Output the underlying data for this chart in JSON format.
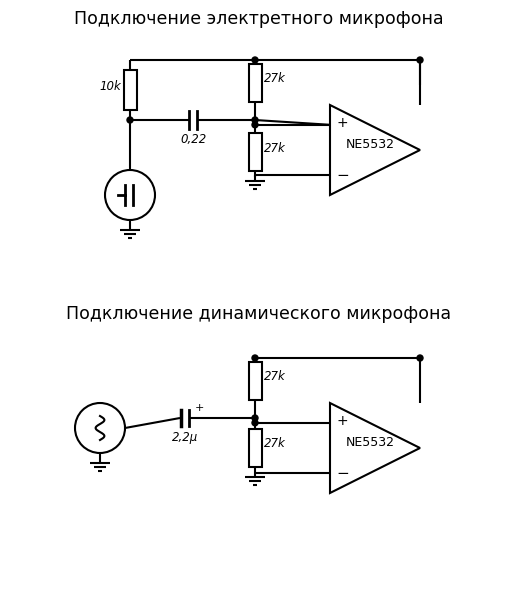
{
  "title1": "Подключение электретного микрофона",
  "title2": "Подключение динамического микрофона",
  "bg_color": "#ffffff",
  "line_color": "#000000",
  "lw": 1.5,
  "font_size_title": 12.5,
  "font_size_label": 8.5,
  "label_10k": "10k",
  "label_27k_t1": "27k",
  "label_27k_b1": "27k",
  "label_022": "0,22",
  "label_ne5532_1": "NE5532",
  "label_27k_t2": "27k",
  "label_27k_b2": "27k",
  "label_22u": "2,2μ",
  "label_ne5532_2": "NE5532",
  "label_plus": "+",
  "label_minus": "−",
  "label_cap_plus": "+"
}
